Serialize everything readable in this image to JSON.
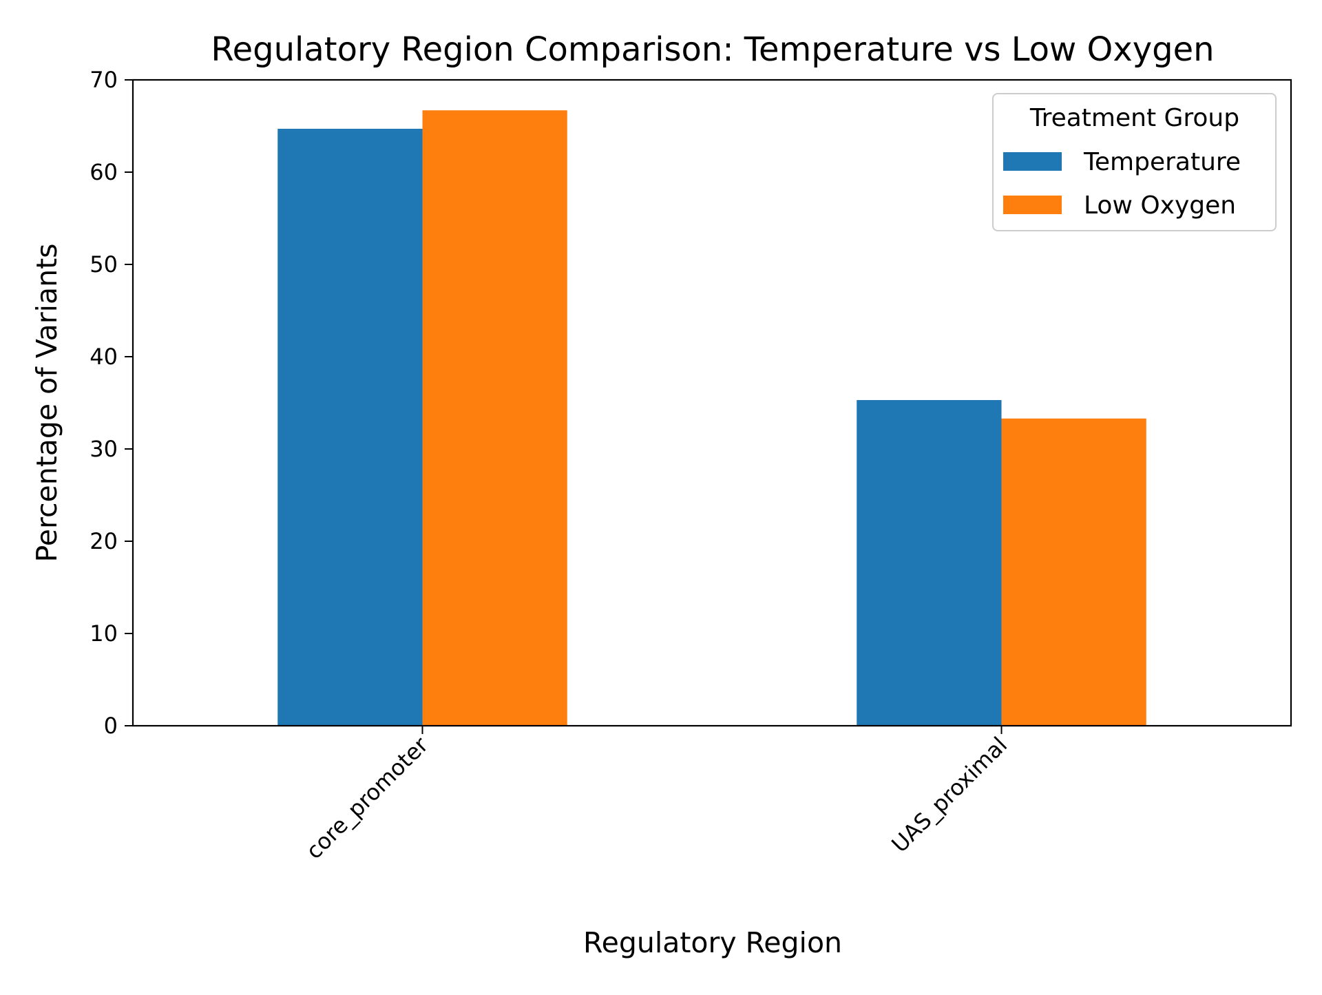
{
  "chart_data": {
    "type": "bar",
    "title": "Regulatory Region Comparison: Temperature vs Low Oxygen",
    "xlabel": "Regulatory Region",
    "ylabel": "Percentage of Variants",
    "categories": [
      "core_promoter",
      "UAS_proximal"
    ],
    "series": [
      {
        "name": "Temperature",
        "values": [
          64.7,
          35.3
        ],
        "color": "#1f77b4"
      },
      {
        "name": "Low Oxygen",
        "values": [
          66.7,
          33.3
        ],
        "color": "#ff7f0e"
      }
    ],
    "ylim": [
      0,
      70
    ],
    "yticks": [
      0,
      10,
      20,
      30,
      40,
      50,
      60,
      70
    ],
    "legend": {
      "title": "Treatment Group",
      "position": "top-right"
    },
    "grid": false
  }
}
